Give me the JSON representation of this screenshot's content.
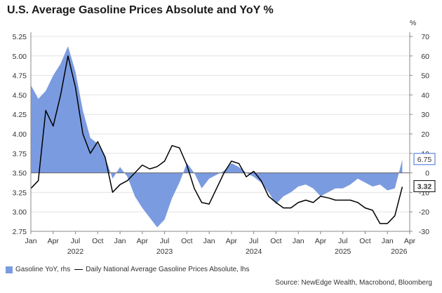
{
  "title": "U.S. Average Gasoline Prices Absolute and YoY %",
  "colors": {
    "area": "#7b9be0",
    "line": "#000000",
    "axis": "#888888",
    "accent": "#3b6fd4"
  },
  "chart_data": {
    "type": "line",
    "title": "U.S. Average Gasoline Prices Absolute and YoY %",
    "left_axis": {
      "ylim": [
        2.75,
        5.25
      ],
      "ticks": [
        "2.75",
        "3.00",
        "3.25",
        "3.50",
        "3.75",
        "4.00",
        "4.25",
        "4.50",
        "4.75",
        "5.00",
        "5.25"
      ]
    },
    "right_axis": {
      "unit_label": "%",
      "ylim": [
        -30,
        70
      ],
      "ticks": [
        "-30",
        "-20",
        "-10",
        "0",
        "10",
        "20",
        "30",
        "40",
        "50",
        "60",
        "70"
      ]
    },
    "x_axis": {
      "month_labels": [
        "Jan",
        "Apr",
        "Jul",
        "Oct",
        "Jan",
        "Apr",
        "Jul",
        "Oct",
        "Jan",
        "Apr",
        "Jul",
        "Oct",
        "Jan",
        "Apr",
        "Jul",
        "Oct",
        "Jan",
        "Apr"
      ],
      "year_labels": [
        "2022",
        "2023",
        "2024",
        "2025",
        "2026"
      ],
      "range": [
        "2022-01",
        "2026-04"
      ]
    },
    "end_labels": {
      "yoy": "6.75",
      "price": "3.32"
    },
    "series": [
      {
        "name": "Gasoline YoY, rhs",
        "type": "area",
        "axis": "right",
        "points": [
          [
            "2022-01",
            45
          ],
          [
            "2022-02",
            38
          ],
          [
            "2022-03",
            42
          ],
          [
            "2022-04",
            50
          ],
          [
            "2022-05",
            56
          ],
          [
            "2022-06",
            65
          ],
          [
            "2022-07",
            52
          ],
          [
            "2022-08",
            32
          ],
          [
            "2022-09",
            18
          ],
          [
            "2022-10",
            15
          ],
          [
            "2022-11",
            8
          ],
          [
            "2022-12",
            -3
          ],
          [
            "2023-01",
            3
          ],
          [
            "2023-02",
            -2
          ],
          [
            "2023-03",
            -12
          ],
          [
            "2023-04",
            -18
          ],
          [
            "2023-05",
            -23
          ],
          [
            "2023-06",
            -28
          ],
          [
            "2023-07",
            -24
          ],
          [
            "2023-08",
            -13
          ],
          [
            "2023-09",
            -5
          ],
          [
            "2023-10",
            5
          ],
          [
            "2023-11",
            0
          ],
          [
            "2023-12",
            -8
          ],
          [
            "2024-01",
            -3
          ],
          [
            "2024-02",
            -1
          ],
          [
            "2024-03",
            1
          ],
          [
            "2024-04",
            5
          ],
          [
            "2024-05",
            3
          ],
          [
            "2024-06",
            0
          ],
          [
            "2024-07",
            -2
          ],
          [
            "2024-08",
            -5
          ],
          [
            "2024-09",
            -10
          ],
          [
            "2024-10",
            -16
          ],
          [
            "2024-11",
            -12
          ],
          [
            "2024-12",
            -10
          ],
          [
            "2025-01",
            -7
          ],
          [
            "2025-02",
            -6
          ],
          [
            "2025-03",
            -8
          ],
          [
            "2025-04",
            -12
          ],
          [
            "2025-05",
            -10
          ],
          [
            "2025-06",
            -8
          ],
          [
            "2025-07",
            -8
          ],
          [
            "2025-08",
            -6
          ],
          [
            "2025-09",
            -3
          ],
          [
            "2025-10",
            -5
          ],
          [
            "2025-11",
            -7
          ],
          [
            "2025-12",
            -6
          ],
          [
            "2026-01",
            -9
          ],
          [
            "2026-02",
            -8
          ],
          [
            "2026-03",
            6.75
          ]
        ]
      },
      {
        "name": "Daily National Average Gasoline Prices Absolute, lhs",
        "type": "line",
        "axis": "left",
        "points": [
          [
            "2022-01",
            3.3
          ],
          [
            "2022-02",
            3.4
          ],
          [
            "2022-03",
            4.3
          ],
          [
            "2022-04",
            4.1
          ],
          [
            "2022-05",
            4.5
          ],
          [
            "2022-06",
            5.0
          ],
          [
            "2022-07",
            4.6
          ],
          [
            "2022-08",
            4.0
          ],
          [
            "2022-09",
            3.75
          ],
          [
            "2022-10",
            3.9
          ],
          [
            "2022-11",
            3.7
          ],
          [
            "2022-12",
            3.25
          ],
          [
            "2023-01",
            3.35
          ],
          [
            "2023-02",
            3.4
          ],
          [
            "2023-03",
            3.5
          ],
          [
            "2023-04",
            3.6
          ],
          [
            "2023-05",
            3.55
          ],
          [
            "2023-06",
            3.58
          ],
          [
            "2023-07",
            3.65
          ],
          [
            "2023-08",
            3.85
          ],
          [
            "2023-09",
            3.82
          ],
          [
            "2023-10",
            3.6
          ],
          [
            "2023-11",
            3.3
          ],
          [
            "2023-12",
            3.12
          ],
          [
            "2024-01",
            3.1
          ],
          [
            "2024-02",
            3.3
          ],
          [
            "2024-03",
            3.5
          ],
          [
            "2024-04",
            3.65
          ],
          [
            "2024-05",
            3.62
          ],
          [
            "2024-06",
            3.45
          ],
          [
            "2024-07",
            3.52
          ],
          [
            "2024-08",
            3.4
          ],
          [
            "2024-09",
            3.2
          ],
          [
            "2024-10",
            3.12
          ],
          [
            "2024-11",
            3.05
          ],
          [
            "2024-12",
            3.05
          ],
          [
            "2025-01",
            3.12
          ],
          [
            "2025-02",
            3.15
          ],
          [
            "2025-03",
            3.12
          ],
          [
            "2025-04",
            3.2
          ],
          [
            "2025-05",
            3.18
          ],
          [
            "2025-06",
            3.15
          ],
          [
            "2025-07",
            3.15
          ],
          [
            "2025-08",
            3.15
          ],
          [
            "2025-09",
            3.12
          ],
          [
            "2025-10",
            3.05
          ],
          [
            "2025-11",
            3.02
          ],
          [
            "2025-12",
            2.85
          ],
          [
            "2026-01",
            2.85
          ],
          [
            "2026-02",
            2.95
          ],
          [
            "2026-03",
            3.32
          ]
        ]
      }
    ]
  },
  "legend": {
    "area_label": "Gasoline YoY, rhs",
    "line_label": "Daily National Average Gasoline Prices Absolute, lhs"
  },
  "source": "Source: NewEdge Wealth, Macrobond, Bloomberg"
}
